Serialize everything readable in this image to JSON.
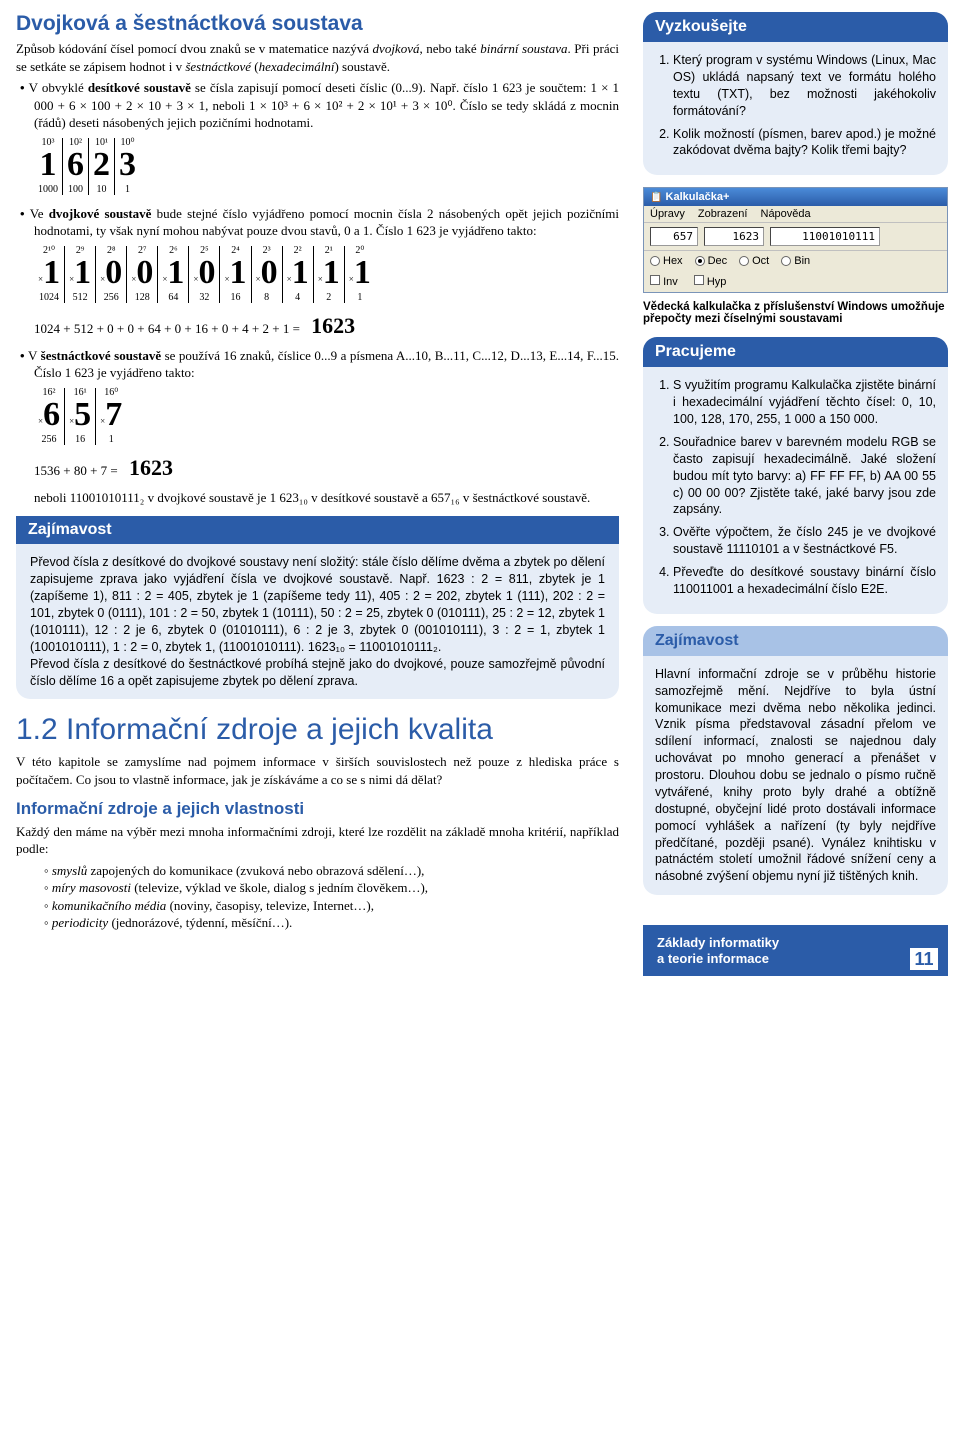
{
  "title": "Dvojková a šestnáctková soustava",
  "intro1_a": "Způsob kódování čísel pomocí dvou znaků se v matematice nazývá ",
  "intro1_b": "dvojková",
  "intro1_c": ", nebo také ",
  "intro1_d": "binární soustava",
  "intro1_e": ". Při práci se setkáte se zápisem hodnot i v ",
  "intro1_f": "šestnáctkové",
  "intro1_g": " (",
  "intro1_h": "hexadecimální",
  "intro1_i": ") soustavě.",
  "bullet1_a": "V obvyklé ",
  "bullet1_b": "desítkové soustavě",
  "bullet1_c": " se čísla zapisují pomocí deseti číslic (0...9). Např. číslo 1 623 je součtem: 1 × 1 000 + 6 × 100 + 2 × 10 + 3 × 1, neboli 1 × 10³ + 6 × 10² + 2 × 10¹ + 3 × 10⁰. Číslo se tedy skládá z mocnin (řádů) deseti násobených jejich pozičními hodnotami.",
  "dec_table": {
    "pows": [
      "10³",
      "10²",
      "10¹",
      "10⁰"
    ],
    "digits": [
      "1",
      "6",
      "2",
      "3"
    ],
    "vals": [
      "1000",
      "100",
      "10",
      "1"
    ]
  },
  "bullet2_a": "Ve ",
  "bullet2_b": "dvojkové soustavě",
  "bullet2_c": " bude stejné číslo vyjádřeno pomocí mocnin čísla 2 násobených opět jejich pozičními hodnotami, ty však nyní mohou nabývat pouze dvou stavů, 0 a 1. Číslo 1 623 je vyjádřeno takto:",
  "bin_table": {
    "pows": [
      "2¹⁰",
      "2⁹",
      "2⁸",
      "2⁷",
      "2⁶",
      "2⁵",
      "2⁴",
      "2³",
      "2²",
      "2¹",
      "2⁰"
    ],
    "digits": [
      "1",
      "1",
      "0",
      "0",
      "1",
      "0",
      "1",
      "0",
      "1",
      "1",
      "1"
    ],
    "vals": [
      "1024",
      "512",
      "256",
      "128",
      "64",
      "32",
      "16",
      "8",
      "4",
      "2",
      "1"
    ]
  },
  "bin_sum": "1024 + 512 + 0 + 0 + 64 + 0 + 16 + 0 + 4 + 2 + 1 =",
  "bin_sum_result": "1623",
  "bullet3_a": "V ",
  "bullet3_b": "šestnáctkové soustavě",
  "bullet3_c": " se používá 16 znaků, číslice 0...9 a písmena A...10, B...11, C...12, D...13, E...14, F...15. Číslo 1 623 je vyjádřeno takto:",
  "hex_table": {
    "pows": [
      "16²",
      "16¹",
      "16⁰"
    ],
    "digits": [
      "6",
      "5",
      "7"
    ],
    "vals": [
      "256",
      "16",
      "1"
    ]
  },
  "hex_sum": "1536 + 80 + 7 =",
  "hex_sum_result": "1623",
  "conclusion": "neboli 11001010111₂ v dvojkové soustavě je 1 623₁₀ v desítkové soustavě a 657₁₆ v šestnáctkové soustavě.",
  "zajimavost_head": "Zajímavost",
  "zajimavost_body": "Převod čísla z desítkové do dvojkové soustavy není složitý: stále číslo dělíme dvěma a zbytek po dělení zapisujeme zprava jako vyjádření čísla ve dvojkové soustavě. Např. 1623 : 2 = 811, zbytek je 1 (zapíšeme 1), 811 : 2 = 405, zbytek je 1 (zapíšeme tedy 11), 405 : 2 = 202, zbytek 1 (111), 202 : 2 = 101, zbytek 0 (0111), 101 : 2 = 50, zbytek 1 (10111), 50 : 2 = 25, zbytek 0 (010111), 25 : 2 = 12, zbytek 1 (1010111), 12 : 2 je 6, zbytek 0 (01010111), 6 : 2 je 3, zbytek 0 (001010111), 3 : 2 = 1, zbytek 1 (1001010111), 1 : 2 = 0, zbytek 1, (11001010111). 1623₁₀ = 11001010111₂.\nPřevod čísla z desítkové do šestnáctkové probíhá stejně jako do dvojkové, pouze samozřejmě původní číslo dělíme 16 a opět zapisujeme zbytek po dělení zprava.",
  "section12": "1.2 Informační zdroje a jejich kvalita",
  "section12_body": "V této kapitole se zamyslíme nad pojmem informace v širších souvislostech než pouze z hlediska práce s počítačem. Co jsou to vlastně informace, jak je získáváme a co se s nimi dá dělat?",
  "sub_heading": "Informační zdroje a jejich vlastnosti",
  "sub_body": "Každý den máme na výběr mezi mnoha informačními zdroji, které lze rozdělit na základě mnoha kritérií, například podle:",
  "sub_items": [
    {
      "i": "smyslů",
      "t": " zapojených do komunikace (zvuková nebo obrazová sdělení…),"
    },
    {
      "i": "míry masovosti",
      "t": " (televize, výklad ve škole, dialog s jedním člověkem…),"
    },
    {
      "i": "komunikačního média",
      "t": " (noviny, časopisy, televize, Internet…),"
    },
    {
      "i": "periodicity",
      "t": " (jednorázové, týdenní, měsíční…)."
    }
  ],
  "vyzk_head": "Vyzkoušejte",
  "vyzk_items": [
    "Který program v systému Windows (Linux, Mac OS) ukládá napsaný text ve formátu holého textu (TXT), bez možnosti jakéhokoliv formátování?",
    "Kolik možností (písmen, barev apod.) je možné zakódovat dvěma bajty? Kolik třemi bajty?"
  ],
  "calc": {
    "title": "Kalkulačka+",
    "menu": [
      "Úpravy",
      "Zobrazení",
      "Nápověda"
    ],
    "a": "657",
    "b": "1623",
    "c": "11001010111",
    "radios": [
      {
        "label": "Hex",
        "on": false
      },
      {
        "label": "Dec",
        "on": true
      },
      {
        "label": "Oct",
        "on": false
      },
      {
        "label": "Bin",
        "on": false
      }
    ],
    "checks": [
      "Inv",
      "Hyp"
    ]
  },
  "calc_caption": "Vědecká kalkulačka z příslušenství Windows umožňuje přepočty mezi číselnými soustavami",
  "prac_head": "Pracujeme",
  "prac_items": [
    "S využitím programu Kalkulačka zjistěte binární i hexadecimální vyjádření těchto čísel: 0, 10, 100, 128, 170, 255, 1 000 a 150 000.",
    "Souřadnice barev v barevném modelu RGB se často zapisují hexadecimálně. Jaké složení budou mít tyto barvy: a) FF FF FF, b) AA 00 55 c) 00 00 00? Zjistěte také, jaké barvy jsou zde zapsány.",
    "Ověřte výpočtem, že číslo 245 je ve dvojkové soustavě 11110101 a v šestnáctkové F5.",
    "Převeďte do desítkové soustavy binární číslo 110011001 a hexadecimální číslo E2E."
  ],
  "zaj2_head": "Zajímavost",
  "zaj2_body": "Hlavní informační zdroje se v průběhu historie samozřejmě mění. Nejdříve to byla ústní komunikace mezi dvěma nebo několika jedinci. Vznik písma představoval zásadní přelom ve sdílení informací, znalosti se najednou daly uchovávat po mnoho generací a přenášet v prostoru. Dlouhou dobu se jednalo o písmo ručně vytvářené, knihy proto byly drahé a obtížně dostupné, obyčejní lidé proto dostávali informace pomocí vyhlášek a nařízení (ty byly nejdříve předčítané, později psané). Vynález knihtisku v patnáctém století umožnil řádové snížení ceny a násobné zvýšení objemu nyní již tištěných knih.",
  "footer_title": "Základy informatiky\na teorie informace",
  "footer_page": "11"
}
